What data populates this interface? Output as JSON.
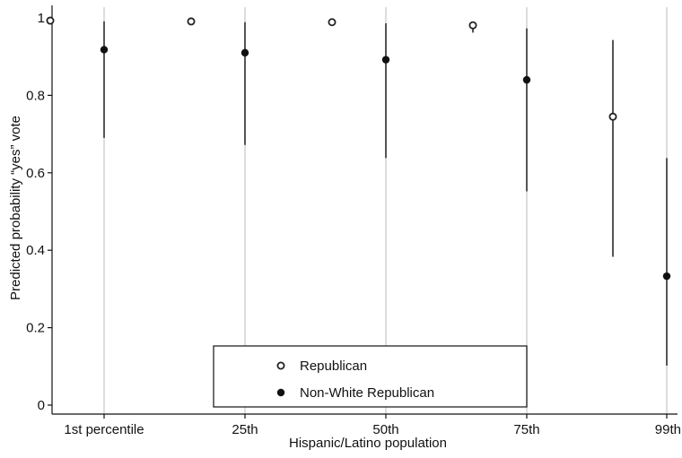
{
  "chart_data": {
    "type": "scatter",
    "xlabel": "Hispanic/Latino population",
    "ylabel": "Predicted probability “yes” vote",
    "categories": [
      "1st percentile",
      "25th",
      "50th",
      "75th",
      "99th"
    ],
    "ylim": [
      0,
      1
    ],
    "yticks": [
      "0",
      "0.2",
      "0.4",
      "0.6",
      "0.8",
      "1"
    ],
    "ytick_values": [
      0,
      0.2,
      0.4,
      0.6,
      0.8,
      1
    ],
    "grid": true,
    "legend_position": "bottom-center",
    "series": [
      {
        "name": "Republican",
        "marker": "hollow-circle",
        "color": "#222222",
        "values": [
          0.993,
          0.991,
          0.989,
          0.981,
          0.745
        ],
        "ci_low": [
          0.99,
          0.988,
          0.983,
          0.962,
          0.383
        ],
        "ci_high": [
          0.996,
          0.994,
          0.993,
          0.99,
          0.943
        ]
      },
      {
        "name": "Non-White Republican",
        "marker": "filled-circle",
        "color": "#111111",
        "values": [
          0.918,
          0.91,
          0.892,
          0.84,
          0.333
        ],
        "ci_low": [
          0.69,
          0.672,
          0.638,
          0.552,
          0.102
        ],
        "ci_high": [
          0.991,
          0.989,
          0.986,
          0.973,
          0.638
        ]
      }
    ]
  }
}
